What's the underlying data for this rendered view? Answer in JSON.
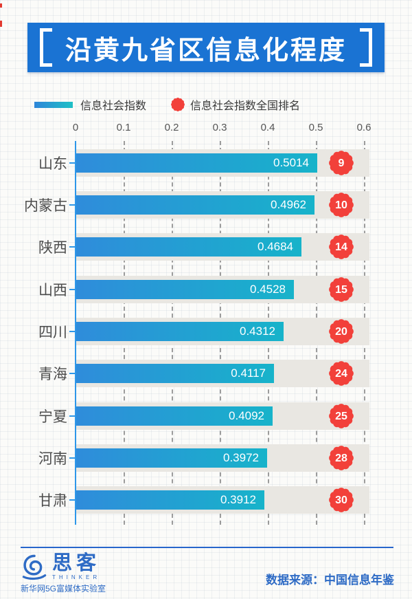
{
  "title": {
    "text": "沿黄九省区信息化程度"
  },
  "legend": {
    "items": [
      {
        "label": "信息社会指数",
        "swatch": "gradient-bar-swatch"
      },
      {
        "label": "信息社会指数全国排名",
        "swatch": "red-flower-badge"
      }
    ]
  },
  "chart_data": {
    "type": "bar",
    "orientation": "horizontal",
    "title": "沿黄九省区信息化程度",
    "categories": [
      "山东",
      "内蒙古",
      "陕西",
      "山西",
      "四川",
      "青海",
      "宁夏",
      "河南",
      "甘肃"
    ],
    "series": [
      {
        "name": "信息社会指数",
        "values": [
          0.5014,
          0.4962,
          0.4684,
          0.4528,
          0.4312,
          0.4117,
          0.4092,
          0.3972,
          0.3912
        ]
      },
      {
        "name": "信息社会指数全国排名",
        "values": [
          9,
          10,
          14,
          15,
          20,
          24,
          25,
          28,
          30
        ]
      }
    ],
    "xlim": [
      0,
      0.6
    ],
    "x_ticks": [
      "0",
      "0.1",
      "0.2",
      "0.3",
      "0.4",
      "0.5",
      "0.6"
    ],
    "grid": "dashed-vertical-gridlines",
    "legend_position": "top-left",
    "rows": [
      {
        "label": "山东",
        "value": "0.5014",
        "rank": "9"
      },
      {
        "label": "内蒙古",
        "value": "0.4962",
        "rank": "10"
      },
      {
        "label": "陕西",
        "value": "0.4684",
        "rank": "14"
      },
      {
        "label": "山西",
        "value": "0.4528",
        "rank": "15"
      },
      {
        "label": "四川",
        "value": "0.4312",
        "rank": "20"
      },
      {
        "label": "青海",
        "value": "0.4117",
        "rank": "24"
      },
      {
        "label": "宁夏",
        "value": "0.4092",
        "rank": "25"
      },
      {
        "label": "河南",
        "value": "0.3972",
        "rank": "28"
      },
      {
        "label": "甘肃",
        "value": "0.3912",
        "rank": "30"
      }
    ]
  },
  "colors": {
    "title_bg": "#1a73d3",
    "bar_gradient_start": "#2f8cdb",
    "bar_gradient_end": "#17b3ca",
    "rank_badge_red": "#f2403a",
    "axis_blue": "#2d97e9",
    "track_gray": "#e9e7e2",
    "brand_blue": "#2e6bc5"
  },
  "footer": {
    "brand_name": "思客",
    "brand_sub": "THINKER",
    "brand_org": "新华网5G富媒体实验室",
    "source": "数据来源：中国信息年鉴"
  }
}
